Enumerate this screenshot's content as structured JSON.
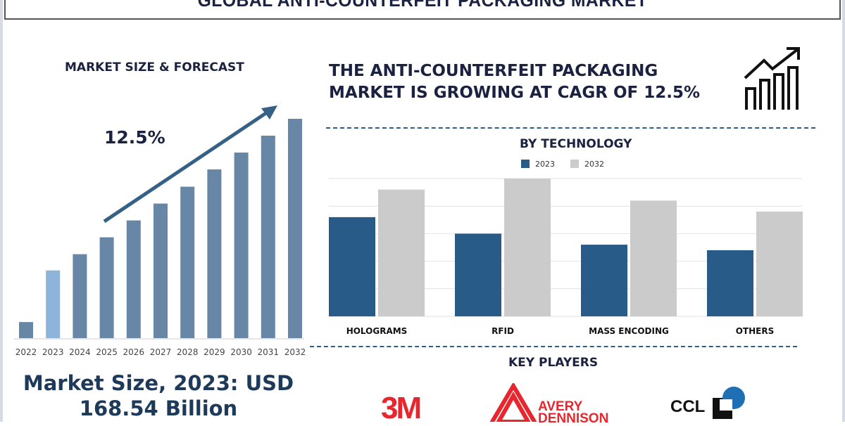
{
  "header": {
    "title": "GLOBAL ANTI-COUNTERFEIT PACKAGING MARKET"
  },
  "left": {
    "heading": "MARKET SIZE & FORECAST",
    "cagr_label": "12.5%",
    "market_size_line1": "Market Size, 2023: USD",
    "market_size_line2": "168.54 Billion"
  },
  "right": {
    "headline_line1": "THE ANTI-COUNTERFEIT PACKAGING",
    "headline_line2": "MARKET IS GROWING AT CAGR OF 12.5%",
    "icon": "growth-chart-icon",
    "tech_heading": "BY TECHNOLOGY",
    "players_heading": "KEY PLAYERS",
    "players": [
      {
        "name": "3M",
        "color": "#e8262d"
      },
      {
        "name": "AVERY DENNISON",
        "line1": "AVERY",
        "line2": "DENNISON",
        "color": "#e8262d"
      },
      {
        "name": "CCL",
        "color": "#111111"
      }
    ]
  },
  "colors": {
    "forecast_bar": "#6887a7",
    "highlight_bar": "#8fb4db",
    "bar_2023": "#285b88",
    "bar_2032": "#cbcbcb",
    "text": "#1b2140",
    "arrow": "#356186"
  },
  "chart_data": [
    {
      "type": "bar",
      "title": "MARKET SIZE & FORECAST",
      "categories": [
        "2022",
        "2023",
        "2024",
        "2025",
        "2026",
        "2027",
        "2028",
        "2029",
        "2030",
        "2031",
        "2032"
      ],
      "values": [
        40,
        168.54,
        209,
        251,
        293,
        335,
        377,
        420,
        462,
        504,
        546
      ],
      "ylim": [
        0,
        560
      ],
      "grid": false,
      "annotation": "12.5%",
      "highlight": "2023"
    },
    {
      "type": "bar",
      "title": "BY TECHNOLOGY",
      "categories": [
        "HOLOGRAMS",
        "RFID",
        "MASS ENCODING",
        "OTHERS"
      ],
      "series": [
        {
          "name": "2023",
          "values": [
            3.6,
            3.0,
            2.6,
            2.4
          ]
        },
        {
          "name": "2032",
          "values": [
            4.6,
            5.0,
            4.2,
            3.8
          ]
        }
      ],
      "ylim": [
        0,
        5
      ],
      "grid": true,
      "legend": "top"
    }
  ]
}
